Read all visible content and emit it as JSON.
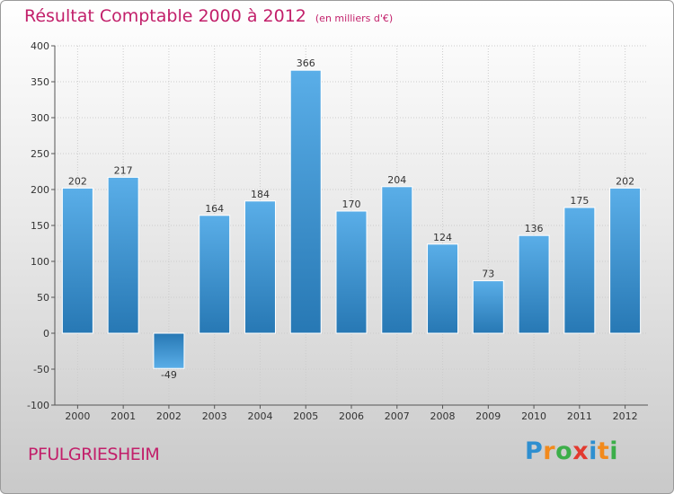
{
  "title": "Résultat Comptable 2000 à 2012",
  "subtitle": "(en milliers d'€)",
  "town": "PFULGRIESHEIM",
  "logo": {
    "letters": [
      "P",
      "r",
      "o",
      "x",
      "i",
      "t",
      "i"
    ],
    "colors": [
      "#2e8fd0",
      "#f28a1c",
      "#3cae49",
      "#e23a2f",
      "#2e8fd0",
      "#f28a1c",
      "#3cae49"
    ]
  },
  "colors": {
    "accent": "#c21f6a",
    "bar_top": "#5aaee8",
    "bar_bottom": "#2778b4",
    "grid": "#cccccc"
  },
  "chart_data": {
    "type": "bar",
    "categories": [
      "2000",
      "2001",
      "2002",
      "2003",
      "2004",
      "2005",
      "2006",
      "2007",
      "2008",
      "2009",
      "2010",
      "2011",
      "2012"
    ],
    "values": [
      202,
      217,
      -49,
      164,
      184,
      366,
      170,
      204,
      124,
      73,
      136,
      175,
      202
    ],
    "ylim": [
      -100,
      400
    ],
    "yticks": [
      -100,
      -50,
      0,
      50,
      100,
      150,
      200,
      250,
      300,
      350,
      400
    ],
    "grid": true,
    "title": "Résultat Comptable 2000 à 2012",
    "subtitle": "(en milliers d'€)"
  }
}
